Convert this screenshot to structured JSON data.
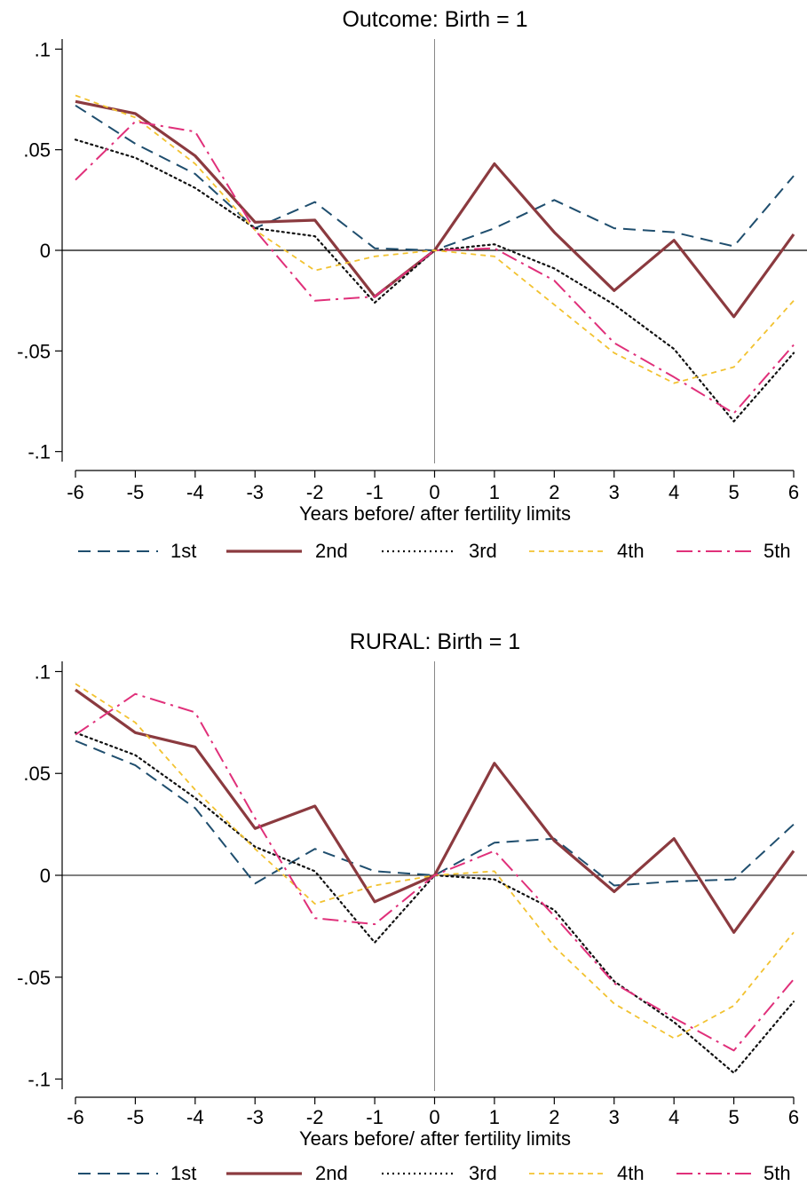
{
  "chart_data": [
    {
      "type": "line",
      "title": "Outcome: Birth = 1",
      "xlabel": "Years before/ after fertility limits",
      "ylabel": "",
      "x": [
        -6,
        -5,
        -4,
        -3,
        -2,
        -1,
        0,
        1,
        2,
        3,
        4,
        5,
        6
      ],
      "xticks": [
        "-6",
        "-5",
        "-4",
        "-3",
        "-2",
        "-1",
        "0",
        "1",
        "2",
        "3",
        "4",
        "5",
        "6"
      ],
      "yticks": [
        0.1,
        0.05,
        0,
        -0.05,
        -0.1
      ],
      "ytick_labels": [
        ".1",
        ".05",
        "0",
        "-.05",
        "-.1"
      ],
      "xlim": [
        -6,
        6
      ],
      "ylim": [
        -0.105,
        0.105
      ],
      "grid": false,
      "legend_position": "bottom",
      "series": [
        {
          "name": "1st",
          "color": "#1f4e6e",
          "style": "dash",
          "values": [
            0.072,
            0.053,
            0.038,
            0.011,
            0.024,
            0.001,
            0.0,
            0.011,
            0.025,
            0.011,
            0.009,
            0.002,
            0.037
          ]
        },
        {
          "name": "2nd",
          "color": "#8b3a3f",
          "style": "solid",
          "values": [
            0.074,
            0.068,
            0.047,
            0.014,
            0.015,
            -0.023,
            0.0,
            0.043,
            0.009,
            -0.02,
            0.005,
            -0.033,
            0.008
          ]
        },
        {
          "name": "3rd",
          "color": "#111111",
          "style": "dot",
          "values": [
            0.055,
            0.046,
            0.031,
            0.011,
            0.007,
            -0.026,
            0.0,
            0.003,
            -0.009,
            -0.027,
            -0.049,
            -0.085,
            -0.051
          ]
        },
        {
          "name": "4th",
          "color": "#f2c230",
          "style": "shortdash",
          "values": [
            0.077,
            0.066,
            0.043,
            0.01,
            -0.01,
            -0.003,
            0.0,
            -0.003,
            -0.027,
            -0.051,
            -0.066,
            -0.058,
            -0.025
          ]
        },
        {
          "name": "5th",
          "color": "#e0307a",
          "style": "dashdot",
          "values": [
            0.035,
            0.064,
            0.059,
            0.01,
            -0.025,
            -0.023,
            0.0,
            0.001,
            -0.015,
            -0.046,
            -0.063,
            -0.081,
            -0.047
          ]
        }
      ]
    },
    {
      "type": "line",
      "title": "RURAL: Birth = 1",
      "xlabel": "Years before/ after fertility limits",
      "ylabel": "",
      "x": [
        -6,
        -5,
        -4,
        -3,
        -2,
        -1,
        0,
        1,
        2,
        3,
        4,
        5,
        6
      ],
      "xticks": [
        "-6",
        "-5",
        "-4",
        "-3",
        "-2",
        "-1",
        "0",
        "1",
        "2",
        "3",
        "4",
        "5",
        "6"
      ],
      "yticks": [
        0.1,
        0.05,
        0,
        -0.05,
        -0.1
      ],
      "ytick_labels": [
        ".1",
        ".05",
        "0",
        "-.05",
        "-.1"
      ],
      "xlim": [
        -6,
        6
      ],
      "ylim": [
        -0.105,
        0.105
      ],
      "grid": false,
      "legend_position": "bottom",
      "series": [
        {
          "name": "1st",
          "color": "#1f4e6e",
          "style": "dash",
          "values": [
            0.066,
            0.054,
            0.033,
            -0.004,
            0.013,
            0.002,
            0.0,
            0.016,
            0.018,
            -0.005,
            -0.003,
            -0.002,
            0.025
          ]
        },
        {
          "name": "2nd",
          "color": "#8b3a3f",
          "style": "solid",
          "values": [
            0.091,
            0.07,
            0.063,
            0.023,
            0.034,
            -0.013,
            0.0,
            0.055,
            0.017,
            -0.008,
            0.018,
            -0.028,
            0.012
          ]
        },
        {
          "name": "3rd",
          "color": "#111111",
          "style": "dot",
          "values": [
            0.07,
            0.059,
            0.038,
            0.014,
            0.002,
            -0.033,
            0.0,
            -0.002,
            -0.017,
            -0.052,
            -0.072,
            -0.097,
            -0.062
          ]
        },
        {
          "name": "4th",
          "color": "#f2c230",
          "style": "shortdash",
          "values": [
            0.094,
            0.075,
            0.042,
            0.013,
            -0.014,
            -0.005,
            0.0,
            0.002,
            -0.035,
            -0.063,
            -0.08,
            -0.064,
            -0.028
          ]
        },
        {
          "name": "5th",
          "color": "#e0307a",
          "style": "dashdot",
          "values": [
            0.069,
            0.089,
            0.08,
            0.028,
            -0.021,
            -0.024,
            0.0,
            0.012,
            -0.02,
            -0.053,
            -0.07,
            -0.086,
            -0.051
          ]
        }
      ]
    }
  ]
}
